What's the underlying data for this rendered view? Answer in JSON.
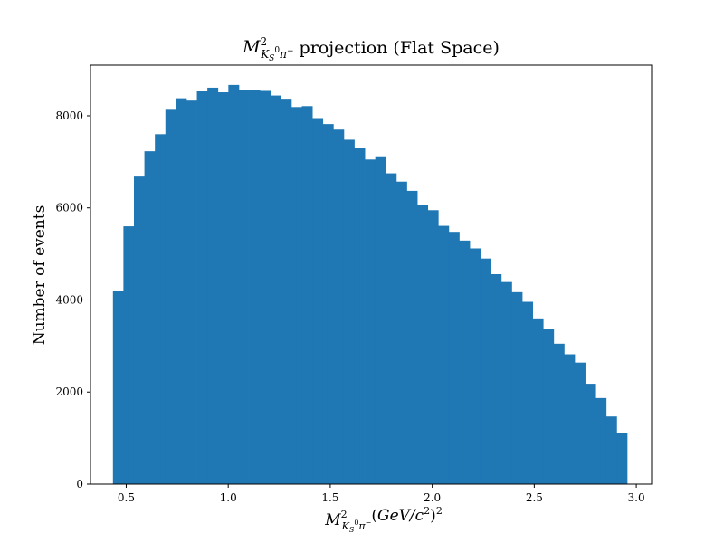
{
  "chart_data": {
    "type": "bar",
    "title": {
      "symbol": "M",
      "sup": "2",
      "sub_main": "K",
      "sub_sub": "S",
      "sub_sup": "0",
      "sub_tail": "π",
      "sub_tail_sup": "−",
      "text": " projection (Flat Space)"
    },
    "xlabel": {
      "symbol": "M",
      "sup": "2",
      "sub_main": "K",
      "sub_sub": "S",
      "sub_sup": "0",
      "sub_tail": "π",
      "sub_tail_sup": "−",
      "unit_open": "(",
      "unit_gev": "GeV",
      "unit_slash": "/",
      "unit_c": "c",
      "unit_c_sup": "2",
      "unit_close": ")",
      "unit_sup": "2"
    },
    "ylabel": "Number of events",
    "xlim": [
      0.325,
      3.075
    ],
    "ylim": [
      0,
      9100
    ],
    "xticks": [
      {
        "value": 0.5,
        "label": "0.5"
      },
      {
        "value": 1.0,
        "label": "1.0"
      },
      {
        "value": 1.5,
        "label": "1.5"
      },
      {
        "value": 2.0,
        "label": "2.0"
      },
      {
        "value": 2.5,
        "label": "2.5"
      },
      {
        "value": 3.0,
        "label": "3.0"
      }
    ],
    "yticks": [
      {
        "value": 0,
        "label": "0"
      },
      {
        "value": 2000,
        "label": "2000"
      },
      {
        "value": 4000,
        "label": "4000"
      },
      {
        "value": 6000,
        "label": "6000"
      },
      {
        "value": 8000,
        "label": "8000"
      }
    ],
    "bin_start": 0.435,
    "bin_end": 2.955,
    "values": [
      4200,
      5600,
      6680,
      7230,
      7600,
      8150,
      8380,
      8330,
      8530,
      8610,
      8510,
      8670,
      8560,
      8560,
      8540,
      8440,
      8370,
      8190,
      8210,
      7950,
      7820,
      7700,
      7480,
      7300,
      7050,
      7120,
      6750,
      6570,
      6370,
      6060,
      5950,
      5610,
      5480,
      5290,
      5120,
      4900,
      4560,
      4390,
      4170,
      3960,
      3600,
      3380,
      3050,
      2820,
      2640,
      2180,
      1870,
      1470,
      1110
    ],
    "bar_color": "#1f77b4",
    "grid": false
  }
}
